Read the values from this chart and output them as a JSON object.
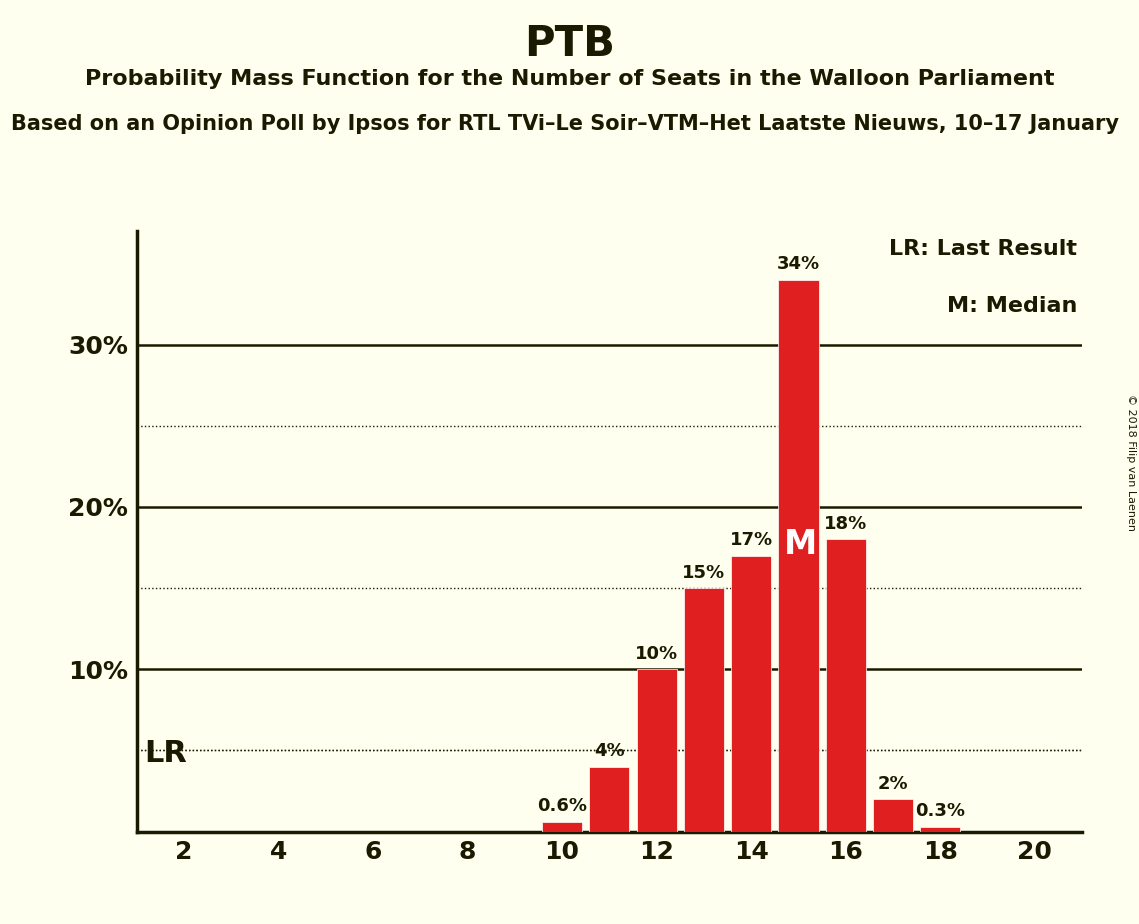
{
  "title": "PTB",
  "subtitle": "Probability Mass Function for the Number of Seats in the Walloon Parliament",
  "subtitle2": "Based on an Opinion Poll by Ipsos for RTL TVi–Le Soir–VTM–Het Laatste Nieuws, 10–17 January",
  "copyright": "© 2018 Filip van Laenen",
  "seats": [
    2,
    3,
    4,
    5,
    6,
    7,
    8,
    9,
    10,
    11,
    12,
    13,
    14,
    15,
    16,
    17,
    18,
    19,
    20
  ],
  "probabilities": [
    0.0,
    0.0,
    0.0,
    0.0,
    0.0,
    0.0,
    0.0,
    0.0,
    0.6,
    4.0,
    10.0,
    15.0,
    17.0,
    34.0,
    18.0,
    2.0,
    0.3,
    0.0,
    0.0
  ],
  "bar_color": "#e02020",
  "background_color": "#fffff0",
  "text_color": "#1a1a00",
  "lr_value": 5.0,
  "median_seat": 15,
  "solid_yticks": [
    10,
    20,
    30
  ],
  "dotted_yticks": [
    5,
    15,
    25
  ],
  "ylim": [
    0,
    37
  ],
  "xlim": [
    1,
    21
  ],
  "xticks": [
    2,
    4,
    6,
    8,
    10,
    12,
    14,
    16,
    18,
    20
  ],
  "legend_text1": "LR: Last Result",
  "legend_text2": "M: Median",
  "lr_label": "LR",
  "median_label": "M",
  "title_fontsize": 30,
  "subtitle_fontsize": 16,
  "subtitle2_fontsize": 15,
  "tick_fontsize": 18,
  "bar_label_fontsize": 13,
  "legend_fontsize": 16,
  "lr_fontsize": 22,
  "median_fontsize": 24
}
